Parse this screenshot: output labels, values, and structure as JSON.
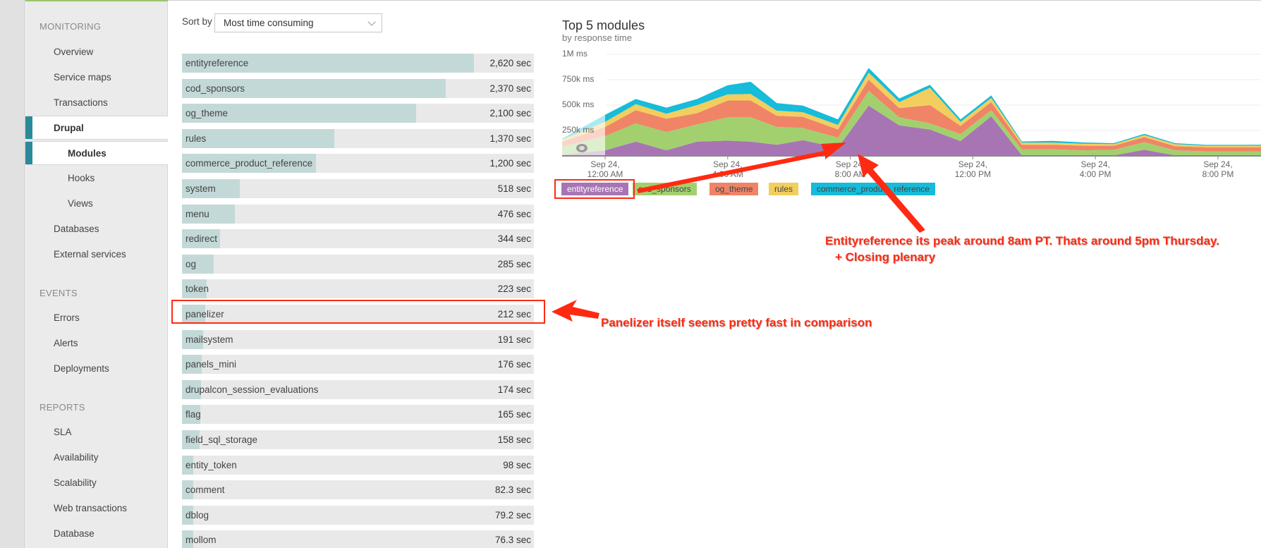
{
  "sidebar": {
    "sections": [
      {
        "title": "MONITORING",
        "items": [
          {
            "label": "Overview",
            "level": 0,
            "active": false
          },
          {
            "label": "Service maps",
            "level": 0,
            "active": false
          },
          {
            "label": "Transactions",
            "level": 0,
            "active": false
          },
          {
            "label": "Drupal",
            "level": 0,
            "active": true
          },
          {
            "label": "Modules",
            "level": 1,
            "active": true
          },
          {
            "label": "Hooks",
            "level": 1,
            "active": false
          },
          {
            "label": "Views",
            "level": 1,
            "active": false
          },
          {
            "label": "Databases",
            "level": 0,
            "active": false
          },
          {
            "label": "External services",
            "level": 0,
            "active": false
          }
        ]
      },
      {
        "title": "EVENTS",
        "items": [
          {
            "label": "Errors",
            "level": 0,
            "active": false
          },
          {
            "label": "Alerts",
            "level": 0,
            "active": false
          },
          {
            "label": "Deployments",
            "level": 0,
            "active": false
          }
        ]
      },
      {
        "title": "REPORTS",
        "items": [
          {
            "label": "SLA",
            "level": 0,
            "active": false
          },
          {
            "label": "Availability",
            "level": 0,
            "active": false
          },
          {
            "label": "Scalability",
            "level": 0,
            "active": false
          },
          {
            "label": "Web transactions",
            "level": 0,
            "active": false
          },
          {
            "label": "Database",
            "level": 0,
            "active": false
          }
        ]
      }
    ]
  },
  "sort": {
    "label": "Sort by",
    "selected": "Most time consuming"
  },
  "modules": [
    {
      "name": "entityreference",
      "value": "2,620 sec",
      "seconds": 2620
    },
    {
      "name": "cod_sponsors",
      "value": "2,370 sec",
      "seconds": 2370
    },
    {
      "name": "og_theme",
      "value": "2,100 sec",
      "seconds": 2100
    },
    {
      "name": "rules",
      "value": "1,370 sec",
      "seconds": 1370
    },
    {
      "name": "commerce_product_reference",
      "value": "1,200 sec",
      "seconds": 1200
    },
    {
      "name": "system",
      "value": "518 sec",
      "seconds": 518
    },
    {
      "name": "menu",
      "value": "476 sec",
      "seconds": 476
    },
    {
      "name": "redirect",
      "value": "344 sec",
      "seconds": 344
    },
    {
      "name": "og",
      "value": "285 sec",
      "seconds": 285
    },
    {
      "name": "token",
      "value": "223 sec",
      "seconds": 223
    },
    {
      "name": "panelizer",
      "value": "212 sec",
      "seconds": 212
    },
    {
      "name": "mailsystem",
      "value": "191 sec",
      "seconds": 191
    },
    {
      "name": "panels_mini",
      "value": "176 sec",
      "seconds": 176
    },
    {
      "name": "drupalcon_session_evaluations",
      "value": "174 sec",
      "seconds": 174
    },
    {
      "name": "flag",
      "value": "165 sec",
      "seconds": 165
    },
    {
      "name": "field_sql_storage",
      "value": "158 sec",
      "seconds": 158
    },
    {
      "name": "entity_token",
      "value": "98 sec",
      "seconds": 98
    },
    {
      "name": "comment",
      "value": "82.3 sec",
      "seconds": 82.3
    },
    {
      "name": "dblog",
      "value": "79.2 sec",
      "seconds": 79.2
    },
    {
      "name": "mollom",
      "value": "76.3 sec",
      "seconds": 76.3
    }
  ],
  "chart": {
    "title": "Top 5 modules",
    "subtitle": "by response time"
  },
  "chart_data": {
    "type": "area",
    "stacked": true,
    "title": "Top 5 modules",
    "subtitle": "by response time",
    "xlabel": "",
    "ylabel": "",
    "ylim": [
      0,
      1000000
    ],
    "y_ticks": [
      "1M ms",
      "750k ms",
      "500k ms",
      "250k ms"
    ],
    "y_tick_values": [
      1000000,
      750000,
      500000,
      250000
    ],
    "x_ticks": [
      "Sep 24, 12:00 AM",
      "Sep 24, 4:00 AM",
      "Sep 24, 8:00 AM",
      "Sep 24, 12:00 PM",
      "Sep 24, 4:00 PM",
      "Sep 24, 8:00 PM"
    ],
    "x_hours": [
      -1.4,
      0,
      1,
      2,
      3,
      4,
      4.75,
      5.6,
      6.45,
      7.6,
      8.6,
      9.6,
      10.6,
      11.6,
      12.6,
      13.6,
      14.6,
      15.6,
      16.6,
      17.6,
      18.6,
      19.6,
      20.6,
      21.6
    ],
    "grid": true,
    "legend_position": "bottom",
    "series": [
      {
        "name": "entityreference",
        "color": "#a775b4",
        "values": [
          10000,
          55000,
          140000,
          55000,
          140000,
          150000,
          140000,
          110000,
          155000,
          80000,
          495000,
          300000,
          260000,
          145000,
          390000,
          5000,
          5000,
          5000,
          5000,
          60000,
          5000,
          5000,
          5000,
          5000
        ]
      },
      {
        "name": "cod_sponsors",
        "color": "#a2d06f",
        "values": [
          80000,
          140000,
          180000,
          180000,
          170000,
          230000,
          240000,
          175000,
          120000,
          100000,
          145000,
          80000,
          60000,
          70000,
          60000,
          60000,
          60000,
          50000,
          55000,
          75000,
          50000,
          40000,
          40000,
          40000
        ]
      },
      {
        "name": "og_theme",
        "color": "#f08466",
        "values": [
          50000,
          90000,
          130000,
          130000,
          110000,
          165000,
          165000,
          110000,
          110000,
          80000,
          110000,
          90000,
          180000,
          80000,
          80000,
          45000,
          45000,
          45000,
          40000,
          50000,
          40000,
          40000,
          40000,
          40000
        ]
      },
      {
        "name": "rules",
        "color": "#f2ce5e",
        "values": [
          20000,
          50000,
          60000,
          50000,
          80000,
          60000,
          65000,
          50000,
          45000,
          45000,
          70000,
          60000,
          170000,
          40000,
          40000,
          20000,
          20000,
          20000,
          15000,
          20000,
          20000,
          15000,
          15000,
          15000
        ]
      },
      {
        "name": "commerce_product_reference",
        "color": "#16bcd9",
        "values": [
          10000,
          70000,
          50000,
          60000,
          60000,
          90000,
          120000,
          75000,
          65000,
          55000,
          45000,
          35000,
          30000,
          25000,
          25000,
          12000,
          18000,
          12000,
          10000,
          12000,
          10000,
          8000,
          8000,
          10000
        ]
      }
    ]
  },
  "legend": [
    {
      "label": "entityreference",
      "color": "#a775b4",
      "dark": false
    },
    {
      "label": "cod_sponsors",
      "color": "#a2d06f",
      "dark": true
    },
    {
      "label": "og_theme",
      "color": "#f08466",
      "dark": true
    },
    {
      "label": "rules",
      "color": "#f2ce5e",
      "dark": true
    },
    {
      "label": "commerce_product_reference",
      "color": "#16bcd9",
      "dark": true
    }
  ],
  "annotations": {
    "color": "#ff2a12",
    "peak_note_line1": "Entityreference its peak around 8am PT. Thats around 5pm Thursday.",
    "peak_note_line2": "+ Closing plenary",
    "panelizer_note": "Panelizer itself seems pretty fast in comparison"
  }
}
